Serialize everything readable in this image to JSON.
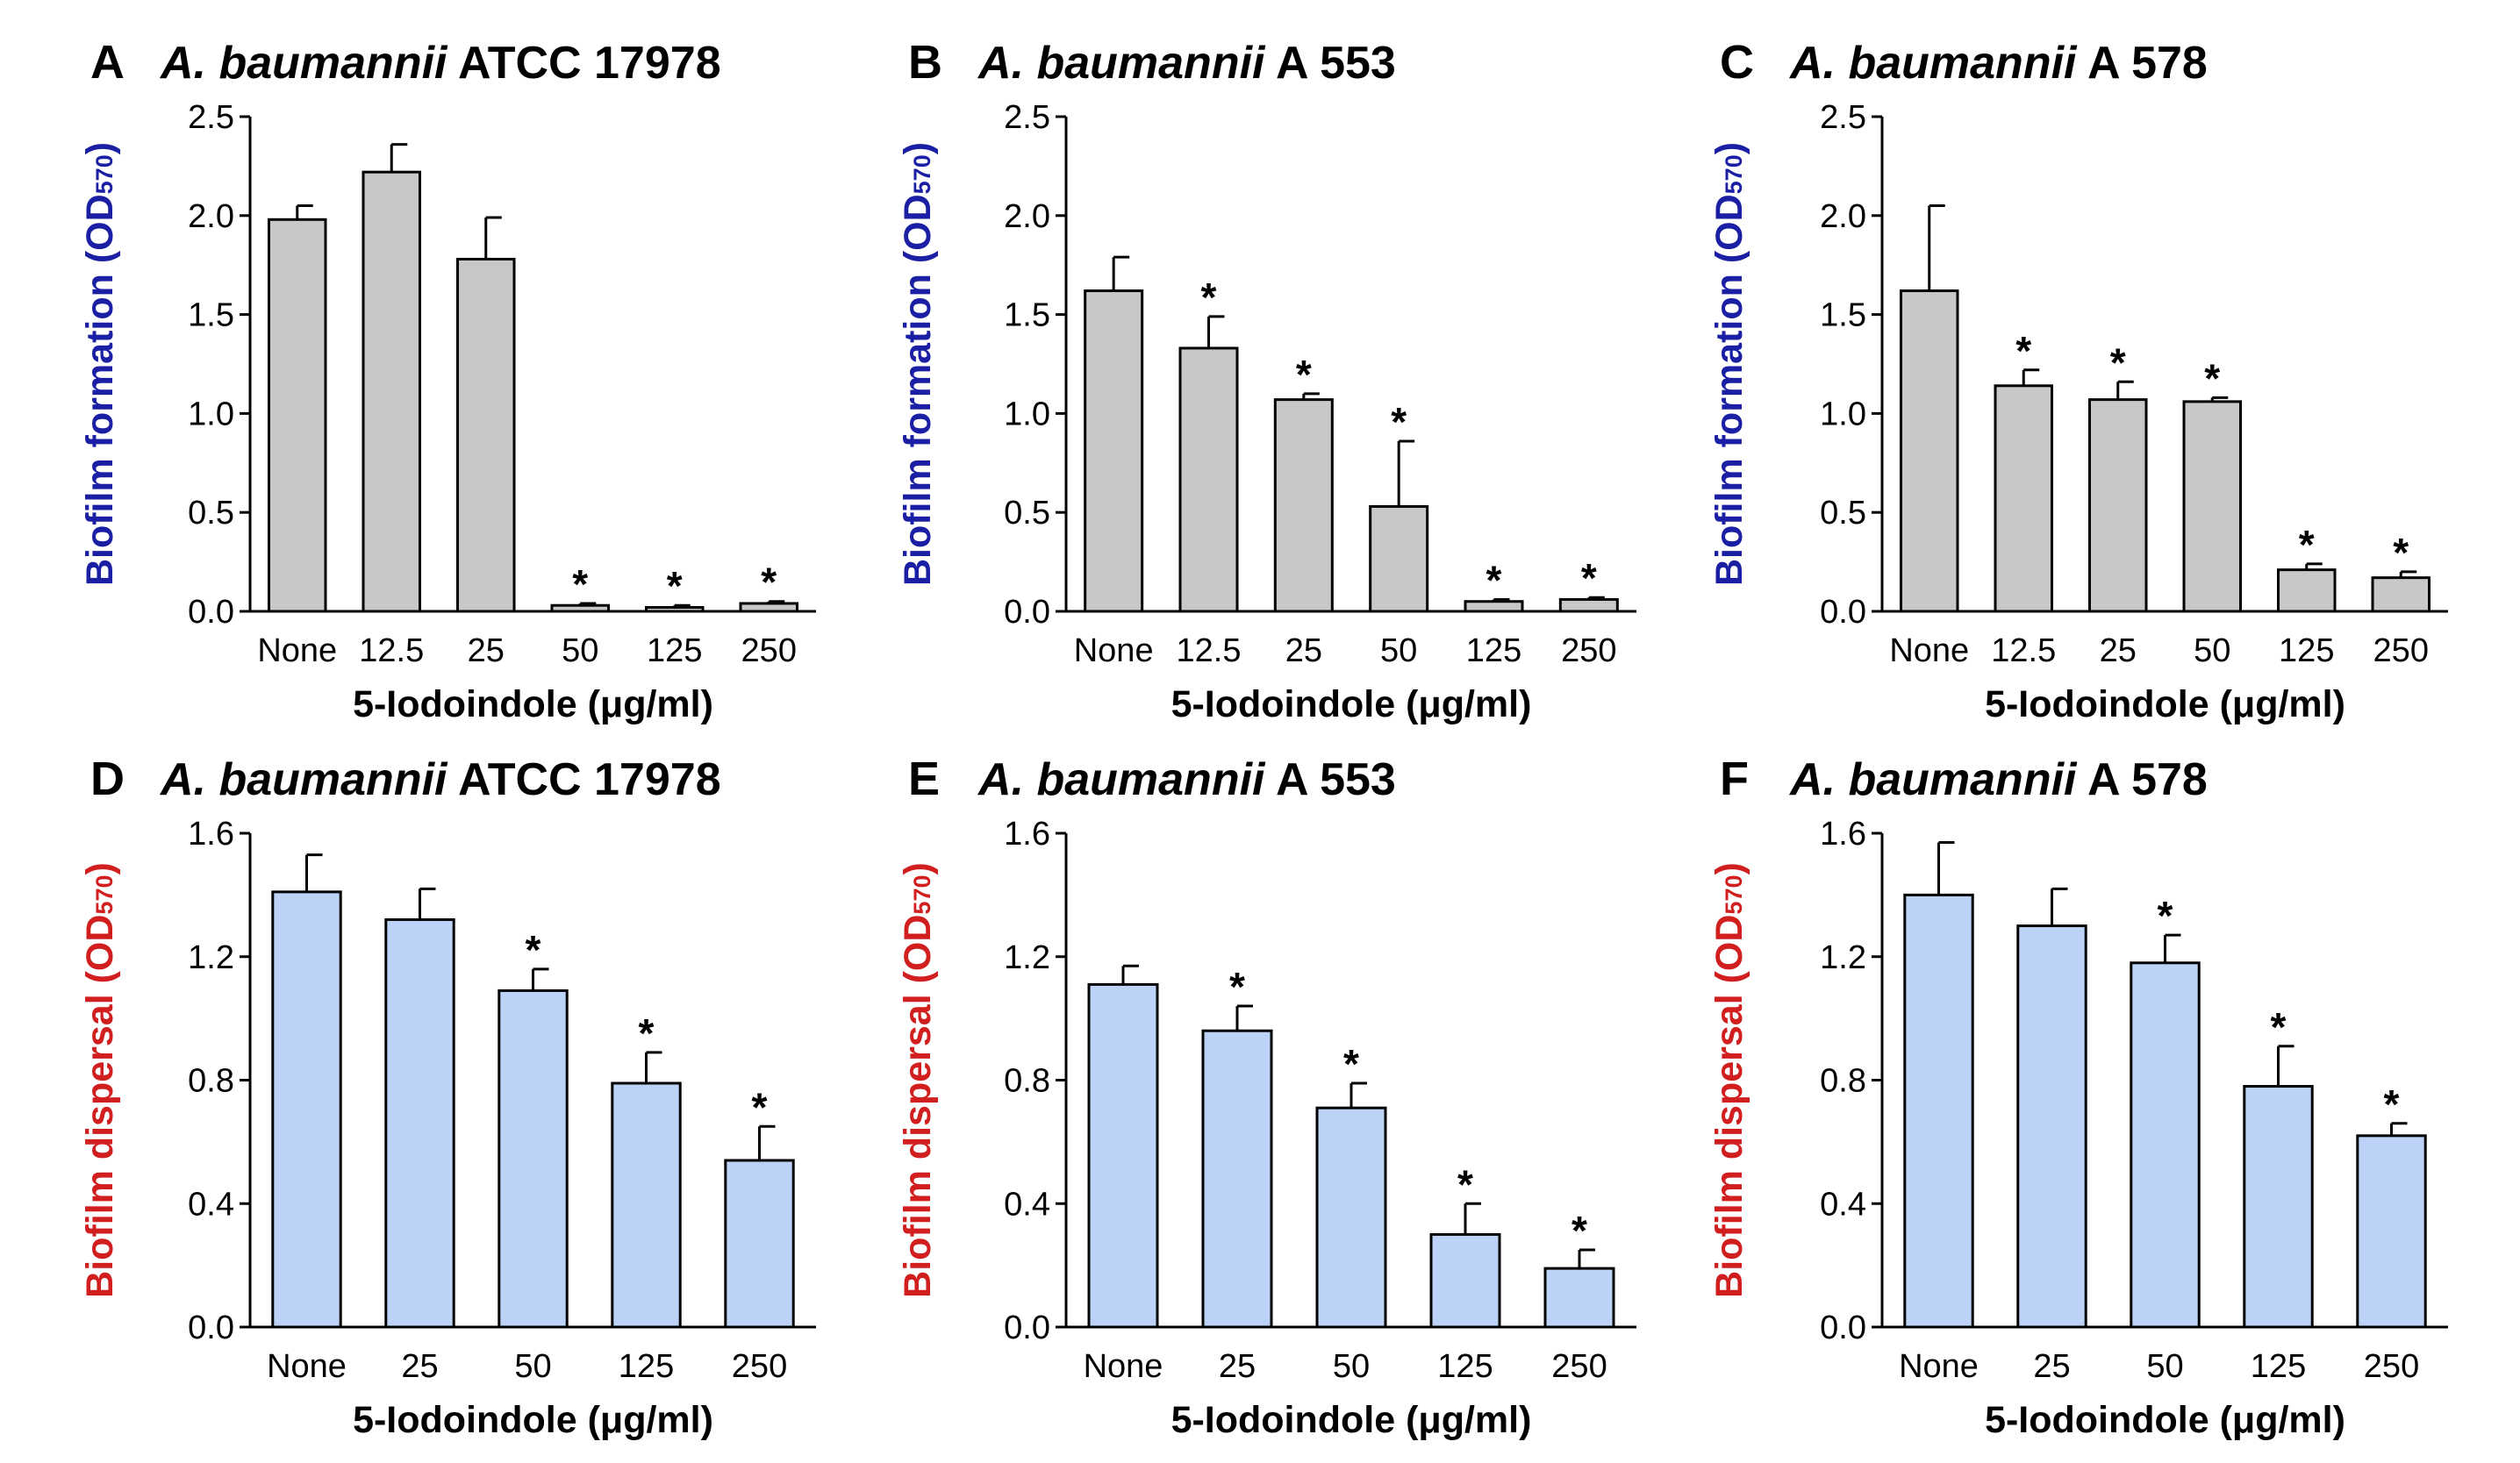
{
  "chart_data": [
    {
      "type": "bar",
      "letter": "A",
      "title_italic": "A. baumannii",
      "title_rest": " ATCC 17978",
      "ylabel_prefix": "Biofilm formation ",
      "ylabel_suffix": "(OD",
      "ylabel_sub": "570",
      "ylabel_close": ")",
      "xlabel": "5-Iodoindole (μg/ml)",
      "categories": [
        "None",
        "12.5",
        "25",
        "50",
        "125",
        "250"
      ],
      "values": [
        1.98,
        2.22,
        1.78,
        0.03,
        0.02,
        0.04
      ],
      "errors": [
        0.07,
        0.14,
        0.21,
        0.01,
        0.01,
        0.01
      ],
      "significant": [
        false,
        false,
        false,
        true,
        true,
        true
      ],
      "ylim": [
        0,
        2.5
      ],
      "yticks": [
        "0.0",
        "0.5",
        "1.0",
        "1.5",
        "2.0",
        "2.5"
      ],
      "star_label": "*"
    },
    {
      "type": "bar",
      "letter": "B",
      "title_italic": "A. baumannii",
      "title_rest": " A 553",
      "ylabel_prefix": "Biofilm formation ",
      "ylabel_suffix": "(OD",
      "ylabel_sub": "570",
      "ylabel_close": ")",
      "xlabel": "5-Iodoindole (μg/ml)",
      "categories": [
        "None",
        "12.5",
        "25",
        "50",
        "125",
        "250"
      ],
      "values": [
        1.62,
        1.33,
        1.07,
        0.53,
        0.05,
        0.06
      ],
      "errors": [
        0.17,
        0.16,
        0.03,
        0.33,
        0.01,
        0.01
      ],
      "significant": [
        false,
        true,
        true,
        true,
        true,
        true
      ],
      "ylim": [
        0,
        2.5
      ],
      "yticks": [
        "0.0",
        "0.5",
        "1.0",
        "1.5",
        "2.0",
        "2.5"
      ],
      "star_label": "*"
    },
    {
      "type": "bar",
      "letter": "C",
      "title_italic": "A. baumannii",
      "title_rest": " A 578",
      "ylabel_prefix": "Biofilm formation ",
      "ylabel_suffix": "(OD",
      "ylabel_sub": "570",
      "ylabel_close": ")",
      "xlabel": "5-Iodoindole (μg/ml)",
      "categories": [
        "None",
        "12.5",
        "25",
        "50",
        "125",
        "250"
      ],
      "values": [
        1.62,
        1.14,
        1.07,
        1.06,
        0.21,
        0.17
      ],
      "errors": [
        0.43,
        0.08,
        0.09,
        0.02,
        0.03,
        0.03
      ],
      "significant": [
        false,
        true,
        true,
        true,
        true,
        true
      ],
      "ylim": [
        0,
        2.5
      ],
      "yticks": [
        "0.0",
        "0.5",
        "1.0",
        "1.5",
        "2.0",
        "2.5"
      ],
      "star_label": "*"
    },
    {
      "type": "bar",
      "letter": "D",
      "title_italic": "A. baumannii",
      "title_rest": " ATCC 17978",
      "ylabel_prefix": "Biofilm dispersal ",
      "ylabel_suffix": "(OD",
      "ylabel_sub": "570",
      "ylabel_close": ")",
      "xlabel": "5-Iodoindole (μg/ml)",
      "categories": [
        "None",
        "25",
        "50",
        "125",
        "250"
      ],
      "values": [
        1.41,
        1.32,
        1.09,
        0.79,
        0.54
      ],
      "errors": [
        0.12,
        0.1,
        0.07,
        0.1,
        0.11
      ],
      "significant": [
        false,
        false,
        true,
        true,
        true
      ],
      "ylim": [
        0,
        1.6
      ],
      "yticks": [
        "0.0",
        "0.4",
        "0.8",
        "1.2",
        "1.6"
      ],
      "star_label": "*"
    },
    {
      "type": "bar",
      "letter": "E",
      "title_italic": "A. baumannii",
      "title_rest": " A 553",
      "ylabel_prefix": "Biofilm dispersal ",
      "ylabel_suffix": "(OD",
      "ylabel_sub": "570",
      "ylabel_close": ")",
      "xlabel": "5-Iodoindole (μg/ml)",
      "categories": [
        "None",
        "25",
        "50",
        "125",
        "250"
      ],
      "values": [
        1.11,
        0.96,
        0.71,
        0.3,
        0.19
      ],
      "errors": [
        0.06,
        0.08,
        0.08,
        0.1,
        0.06
      ],
      "significant": [
        false,
        true,
        true,
        true,
        true
      ],
      "ylim": [
        0,
        1.6
      ],
      "yticks": [
        "0.0",
        "0.4",
        "0.8",
        "1.2",
        "1.6"
      ],
      "star_label": "*"
    },
    {
      "type": "bar",
      "letter": "F",
      "title_italic": "A. baumannii",
      "title_rest": " A 578",
      "ylabel_prefix": "Biofilm dispersal ",
      "ylabel_suffix": "(OD",
      "ylabel_sub": "570",
      "ylabel_close": ")",
      "xlabel": "5-Iodoindole (μg/ml)",
      "categories": [
        "None",
        "25",
        "50",
        "125",
        "250"
      ],
      "values": [
        1.4,
        1.3,
        1.18,
        0.78,
        0.62
      ],
      "errors": [
        0.17,
        0.12,
        0.09,
        0.13,
        0.04
      ],
      "significant": [
        false,
        false,
        true,
        true,
        true
      ],
      "ylim": [
        0,
        1.6
      ],
      "yticks": [
        "0.0",
        "0.4",
        "0.8",
        "1.2",
        "1.6"
      ],
      "star_label": "*"
    }
  ],
  "colors": {
    "formation_bar": "#c8c8c8",
    "dispersal_bar": "#bcd3f7",
    "formation_label": "#1b1fa3",
    "dispersal_label": "#d11f1f",
    "axis": "#000000"
  }
}
